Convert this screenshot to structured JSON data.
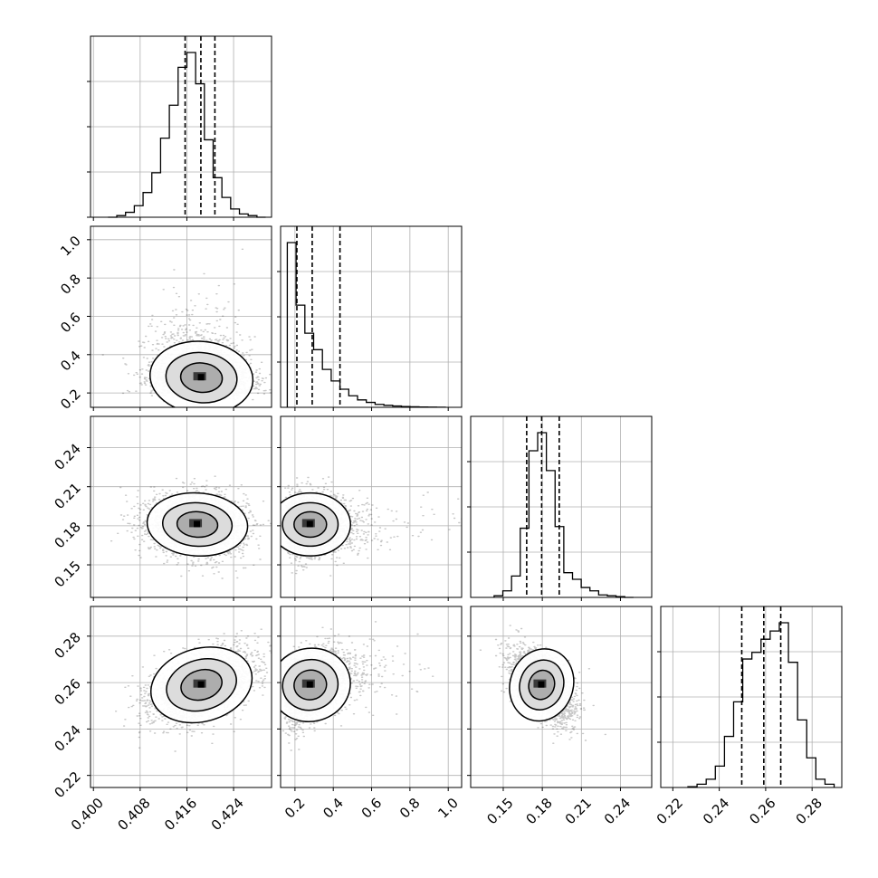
{
  "chart_data": {
    "type": "scatter",
    "parameters": [
      {
        "index": 0,
        "range": [
          0.3995,
          0.4305
        ],
        "ticks": [
          "0.400",
          "0.408",
          "0.416",
          "0.424"
        ],
        "tick_values": [
          0.4,
          0.408,
          0.416,
          0.424
        ],
        "quantiles": [
          0.4157,
          0.4184,
          0.4208
        ],
        "hist_heights": [
          0.0,
          0.01,
          0.03,
          0.07,
          0.15,
          0.27,
          0.48,
          0.68,
          0.91,
          1.0,
          0.81,
          0.47,
          0.24,
          0.12,
          0.05,
          0.02,
          0.01,
          0.0
        ]
      },
      {
        "index": 1,
        "range": [
          0.125,
          1.07
        ],
        "ticks": [
          "0.2",
          "0.4",
          "0.6",
          "0.8",
          "1.0"
        ],
        "tick_values": [
          0.2,
          0.4,
          0.6,
          0.8,
          1.0
        ],
        "quantiles": [
          0.21,
          0.29,
          0.435
        ],
        "hist_heights": [
          1.0,
          0.62,
          0.45,
          0.35,
          0.23,
          0.16,
          0.11,
          0.07,
          0.045,
          0.03,
          0.018,
          0.012,
          0.008,
          0.005,
          0.003,
          0.002,
          0.001,
          0.0005
        ]
      },
      {
        "index": 2,
        "range": [
          0.125,
          0.264
        ],
        "ticks": [
          "0.15",
          "0.18",
          "0.21",
          "0.24"
        ],
        "tick_values": [
          0.15,
          0.18,
          0.21,
          0.24
        ],
        "quantiles": [
          0.168,
          0.1795,
          0.193
        ],
        "hist_heights": [
          0.01,
          0.04,
          0.13,
          0.42,
          0.89,
          1.0,
          0.77,
          0.43,
          0.15,
          0.11,
          0.06,
          0.04,
          0.015,
          0.01,
          0.005,
          0.0
        ]
      },
      {
        "index": 3,
        "range": [
          0.2148,
          0.2928
        ],
        "ticks": [
          "0.22",
          "0.24",
          "0.26",
          "0.28"
        ],
        "tick_values": [
          0.22,
          0.24,
          0.26,
          0.28
        ],
        "quantiles": [
          0.2497,
          0.2592,
          0.2665
        ],
        "hist_heights": [
          0.005,
          0.02,
          0.05,
          0.13,
          0.31,
          0.52,
          0.78,
          0.82,
          0.9,
          0.95,
          1.0,
          0.76,
          0.41,
          0.18,
          0.05,
          0.02
        ]
      }
    ],
    "pairs": [
      {
        "x": 0,
        "y": 1,
        "center": [
          0.4185,
          0.32
        ],
        "spread": [
          0.0042,
          0.09
        ],
        "corr": -0.15,
        "skew_y": "right"
      },
      {
        "x": 0,
        "y": 2,
        "center": [
          0.4178,
          0.181
        ],
        "spread": [
          0.0041,
          0.0115
        ],
        "corr": -0.1
      },
      {
        "x": 1,
        "y": 2,
        "center": [
          0.3,
          0.181
        ],
        "spread": [
          0.1,
          0.0115
        ],
        "corr": 0.0,
        "skew_x": "right"
      },
      {
        "x": 0,
        "y": 3,
        "center": [
          0.4185,
          0.259
        ],
        "spread": [
          0.0042,
          0.0075
        ],
        "corr": 0.45
      },
      {
        "x": 1,
        "y": 3,
        "center": [
          0.3,
          0.259
        ],
        "spread": [
          0.1,
          0.0075
        ],
        "corr": 0.35,
        "skew_x": "right"
      },
      {
        "x": 2,
        "y": 3,
        "center": [
          0.1795,
          0.259
        ],
        "spread": [
          0.0115,
          0.0075
        ],
        "corr": -0.55
      }
    ],
    "contour_levels": 3,
    "grid": true
  }
}
